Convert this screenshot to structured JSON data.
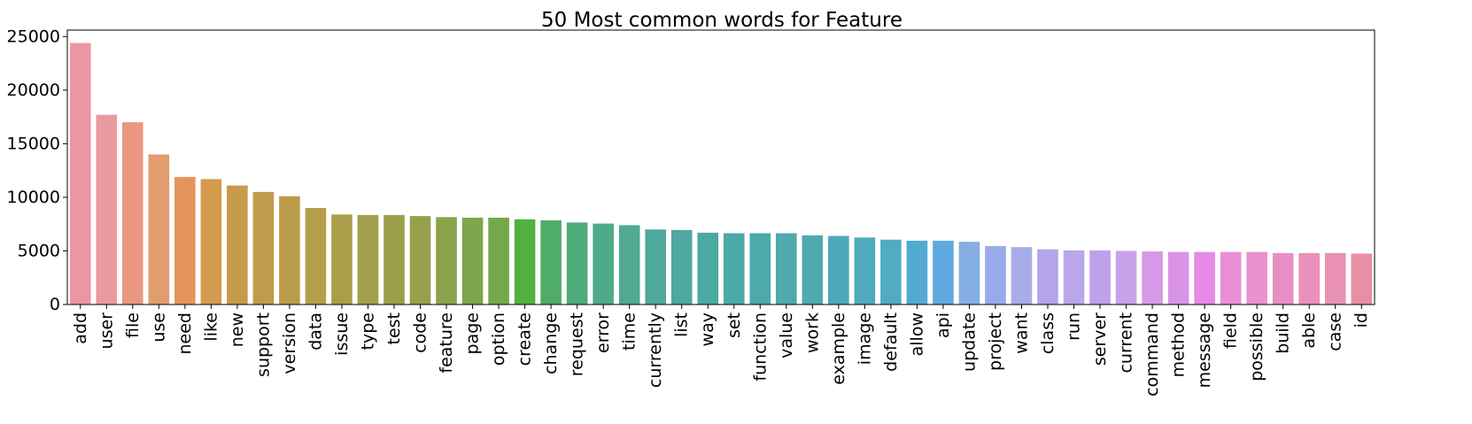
{
  "chart_data": {
    "type": "bar",
    "title": "50 Most common words for Feature",
    "xlabel": "",
    "ylabel": "",
    "ylim": [
      0,
      25600
    ],
    "yticks": [
      0,
      5000,
      10000,
      15000,
      20000,
      25000
    ],
    "grid": false,
    "categories": [
      "add",
      "user",
      "file",
      "use",
      "need",
      "like",
      "new",
      "support",
      "version",
      "data",
      "issue",
      "type",
      "test",
      "code",
      "feature",
      "page",
      "option",
      "create",
      "change",
      "request",
      "error",
      "time",
      "currently",
      "list",
      "way",
      "set",
      "function",
      "value",
      "work",
      "example",
      "image",
      "default",
      "allow",
      "api",
      "update",
      "project",
      "want",
      "class",
      "run",
      "server",
      "current",
      "command",
      "method",
      "message",
      "field",
      "possible",
      "build",
      "able",
      "case",
      "id"
    ],
    "values": [
      24400,
      17700,
      17000,
      14000,
      11900,
      11700,
      11100,
      10500,
      10100,
      9000,
      8400,
      8350,
      8350,
      8250,
      8150,
      8100,
      8100,
      7950,
      7850,
      7650,
      7550,
      7400,
      7000,
      6950,
      6700,
      6650,
      6650,
      6650,
      6450,
      6400,
      6250,
      6050,
      5950,
      5950,
      5850,
      5450,
      5350,
      5150,
      5050,
      5050,
      5000,
      4950,
      4900,
      4900,
      4900,
      4900,
      4800,
      4800,
      4800,
      4750
    ],
    "colors": [
      "#ea96a3",
      "#eb99a0",
      "#e9987f",
      "#e29d6e",
      "#e6955a",
      "#d49a4d",
      "#c79a4c",
      "#be9c4c",
      "#ba9b4a",
      "#b59e4b",
      "#aa9e4a",
      "#a19f4c",
      "#9b9f4b",
      "#97a04a",
      "#8aa34b",
      "#7ea64d",
      "#75a84d",
      "#52b140",
      "#4fac69",
      "#4eab7a",
      "#4faa89",
      "#4faa91",
      "#4ea89b",
      "#4fa89f",
      "#4ca9a4",
      "#4da9a7",
      "#4da9aa",
      "#4fa9ad",
      "#4fa9b1",
      "#4da9b8",
      "#50aabe",
      "#51abc5",
      "#52aad3",
      "#5eaadf",
      "#85aee3",
      "#99aaeb",
      "#a7ade8",
      "#b3a5e8",
      "#baa6e8",
      "#c0a0e8",
      "#c8a1e8",
      "#d898e8",
      "#d994e8",
      "#e58ae5",
      "#e98fd7",
      "#ea91ce",
      "#e98fc4",
      "#ea90bc",
      "#e891b5",
      "#e88fa6"
    ]
  }
}
